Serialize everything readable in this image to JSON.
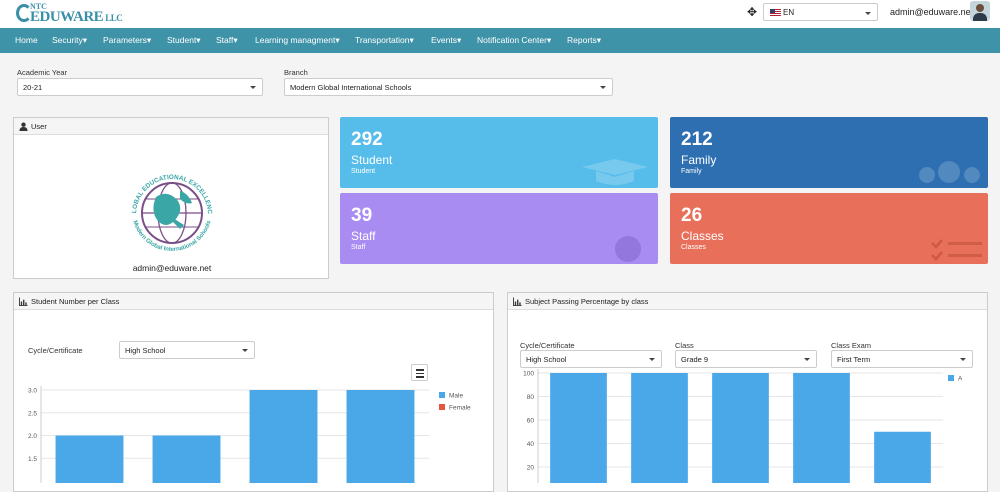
{
  "header": {
    "brand_top": "NTC",
    "brand_main": "EDUWARE",
    "brand_suffix": "LLC",
    "language": "EN",
    "user_email": "admin@eduware.net"
  },
  "nav": {
    "items": [
      {
        "label": "Home"
      },
      {
        "label": "Security▾"
      },
      {
        "label": "Parameters▾"
      },
      {
        "label": "Student▾"
      },
      {
        "label": "Staff▾"
      },
      {
        "label": "Learning managment▾"
      },
      {
        "label": "Transportation▾"
      },
      {
        "label": "Events▾"
      },
      {
        "label": "Notification Center▾"
      },
      {
        "label": "Reports▾"
      }
    ]
  },
  "filters": {
    "academic_year_label": "Academic Year",
    "academic_year_value": "20-21",
    "branch_label": "Branch",
    "branch_value": "Modern Global International Schools"
  },
  "user_panel": {
    "title": "User",
    "seal_top_text": "GLOBAL EDUCATIONAL EXCELLENCE",
    "seal_bottom_text": "Modern Global International Schools",
    "email": "admin@eduware.net"
  },
  "tiles": [
    {
      "value": "292",
      "label": "Student",
      "sub": "Student",
      "color": "#56bdea"
    },
    {
      "value": "212",
      "label": "Family",
      "sub": "Family",
      "color": "#2d6fb0"
    },
    {
      "value": "39",
      "label": "Staff",
      "sub": "Staff",
      "color": "#a98cf2"
    },
    {
      "value": "26",
      "label": "Classes",
      "sub": "Classes",
      "color": "#e8705b"
    }
  ],
  "student_chart_panel": {
    "title": "Student Number per Class",
    "cycle_label": "Cycle/Certificate",
    "cycle_value": "High School"
  },
  "passing_chart_panel": {
    "title": "Subject Passing Percentage by class",
    "cycle_label": "Cycle/Certificate",
    "cycle_value": "High School",
    "class_label": "Class",
    "class_value": "Grade 9",
    "exam_label": "Class Exam",
    "exam_value": "First Term"
  },
  "chart_data": [
    {
      "type": "bar",
      "title": "",
      "yticks": [
        "3.0",
        "2.5",
        "2.0",
        "1.5"
      ],
      "ylim": [
        1.0,
        3.0
      ],
      "series": [
        {
          "name": "Male",
          "color": "#4aa8e8",
          "values": [
            2,
            2,
            3,
            3
          ]
        },
        {
          "name": "Female",
          "color": "#e8553f",
          "values": [
            0,
            0,
            0,
            0
          ]
        }
      ],
      "grid": true,
      "legend": "top-right"
    },
    {
      "type": "bar",
      "title": "",
      "yticks": [
        "100",
        "80",
        "60",
        "40",
        "20"
      ],
      "ylim": [
        0,
        100
      ],
      "series": [
        {
          "name": "A",
          "color": "#4aa8e8",
          "values": [
            100,
            100,
            100,
            100,
            50
          ]
        }
      ],
      "grid": true,
      "legend": "top-right"
    }
  ]
}
